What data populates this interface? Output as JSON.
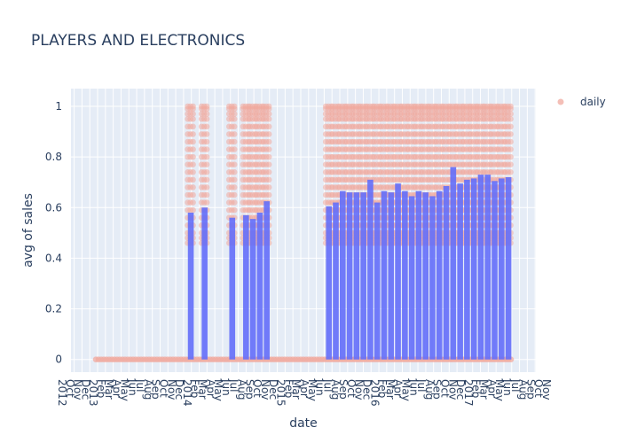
{
  "chart_data": {
    "type": "bar",
    "title": "PLAYERS AND ELECTRONICS",
    "xlabel": "date",
    "ylabel": "avg of sales",
    "ylim": [
      -0.05,
      1.07
    ],
    "yticks": [
      0,
      0.2,
      0.4,
      0.6,
      0.8,
      1
    ],
    "grid": true,
    "legend": {
      "position": "top-right",
      "entries": [
        "daily"
      ]
    },
    "colors": {
      "bars": "#636efa",
      "daily": "#f0a99f",
      "plot_bg": "#e5ecf6",
      "grid": "#ffffff",
      "text": "#2a3f5f"
    },
    "x_tick_labels": [
      "2012",
      "Oct",
      "Nov",
      "Dec",
      "2013",
      "Feb",
      "Mar",
      "Apr",
      "May",
      "Jun",
      "Jul",
      "Aug",
      "Sep",
      "Oct",
      "Nov",
      "Dec",
      "2014",
      "Feb",
      "Mar",
      "Apr",
      "May",
      "Jun",
      "Jul",
      "Aug",
      "Sep",
      "Oct",
      "Nov",
      "Dec",
      "2015",
      "Feb",
      "Mar",
      "Apr",
      "May",
      "Jun",
      "Jul",
      "Aug",
      "Sep",
      "Oct",
      "Nov",
      "Dec",
      "2016",
      "Feb",
      "Mar",
      "Apr",
      "May",
      "Jun",
      "Jul",
      "Aug",
      "Sep",
      "Oct",
      "Nov",
      "Dec",
      "2017",
      "Feb",
      "Mar",
      "Apr",
      "May",
      "Jun",
      "Jul",
      "Aug",
      "Sep",
      "Oct",
      "Nov"
    ],
    "categories": [
      "2013-01",
      "2013-02",
      "2013-03",
      "2013-04",
      "2013-05",
      "2013-06",
      "2013-07",
      "2013-08",
      "2013-09",
      "2013-10",
      "2013-11",
      "2013-12",
      "2014-01",
      "2014-02",
      "2014-03",
      "2014-04",
      "2014-05",
      "2014-06",
      "2014-07",
      "2014-08",
      "2014-09",
      "2014-10",
      "2014-11",
      "2014-12",
      "2015-01",
      "2015-02",
      "2015-03",
      "2015-04",
      "2015-05",
      "2015-06",
      "2015-07",
      "2015-08",
      "2015-09",
      "2015-10",
      "2015-11",
      "2015-12",
      "2016-01",
      "2016-02",
      "2016-03",
      "2016-04",
      "2016-05",
      "2016-06",
      "2016-07",
      "2016-08",
      "2016-09",
      "2016-10",
      "2016-11",
      "2016-12",
      "2017-01",
      "2017-02",
      "2017-03",
      "2017-04",
      "2017-05",
      "2017-06",
      "2017-07",
      "2017-08"
    ],
    "series": [
      {
        "type": "bar",
        "values": [
          0,
          0,
          0,
          0,
          0,
          0,
          0,
          0,
          0,
          0,
          0,
          0,
          0,
          0.58,
          0,
          0.6,
          0,
          0,
          0,
          0.56,
          0,
          0.57,
          0.555,
          0.58,
          0.625,
          0,
          0,
          0,
          0,
          0,
          0,
          0,
          0,
          0.605,
          0.62,
          0.665,
          0.66,
          0.66,
          0.66,
          0.71,
          0.62,
          0.665,
          0.66,
          0.695,
          0.665,
          0.645,
          0.665,
          0.66,
          0.645,
          0.665,
          0.685,
          0.76,
          0.695,
          0.71,
          0.715,
          0.73
        ]
      },
      {
        "name": "daily",
        "type": "scatter",
        "values_summary": "daily values range from about 0.45 to 1.0 in months with sales; about 0 elsewhere"
      }
    ],
    "extra_bars": [
      0.73,
      0.705,
      0.715,
      0.72
    ]
  }
}
